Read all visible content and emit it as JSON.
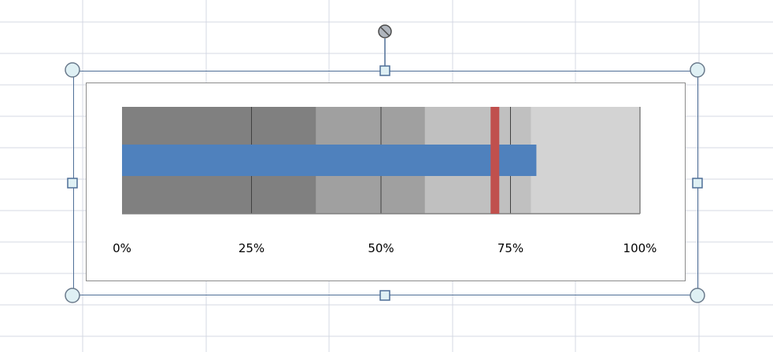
{
  "chart_data": {
    "type": "bar",
    "subtype": "bullet",
    "orientation": "horizontal",
    "value": 0.8,
    "target": 0.72,
    "bands": [
      {
        "from": 0.0,
        "to": 0.375,
        "color": "#808080"
      },
      {
        "from": 0.375,
        "to": 0.585,
        "color": "#a0a0a0"
      },
      {
        "from": 0.585,
        "to": 0.79,
        "color": "#c0c0c0"
      },
      {
        "from": 0.79,
        "to": 1.0,
        "color": "#d3d3d3"
      }
    ],
    "xlim": [
      0,
      1
    ],
    "ticks": [
      0,
      0.25,
      0.5,
      0.75,
      1.0
    ],
    "tick_labels": [
      "0%",
      "25%",
      "50%",
      "75%",
      "100%"
    ],
    "gridlines": true,
    "colors": {
      "value_bar": "#4f81bd",
      "target_marker": "#c0504d",
      "gridline": "#404040",
      "axis": "#808080"
    }
  }
}
